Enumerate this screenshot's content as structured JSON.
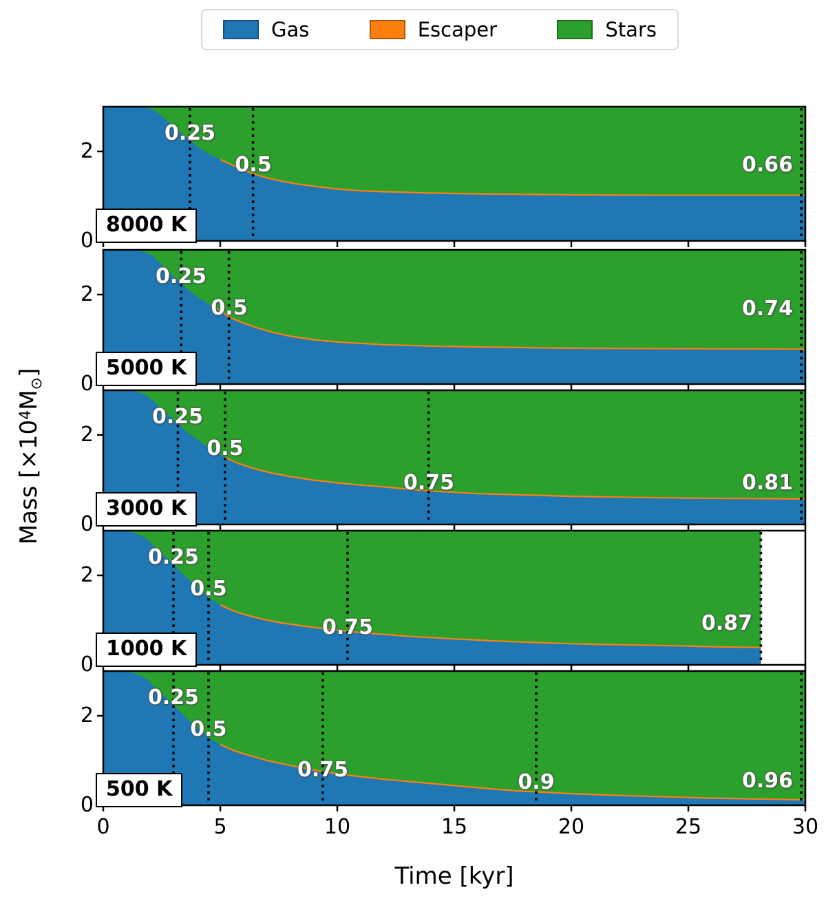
{
  "legend": {
    "items": [
      {
        "label": "Gas",
        "color": "#1f77b4"
      },
      {
        "label": "Escaper",
        "color": "#ff7f0e"
      },
      {
        "label": "Stars",
        "color": "#2ca02c"
      }
    ]
  },
  "axes": {
    "xlabel": "Time [kyr]",
    "ylabel_parts": {
      "prefix": "Mass [×10",
      "superscript": "4",
      "unit": "M",
      "subscript": "⊙",
      "suffix": "]"
    },
    "x_tick_labels": [
      "0",
      "5",
      "10",
      "15",
      "20",
      "25",
      "30"
    ],
    "y_tick_labels": [
      "0",
      "2"
    ]
  },
  "chart_data": {
    "type": "area",
    "xlabel": "Time [kyr]",
    "ylabel": "Mass [×10⁴ M⊙]",
    "xlim": [
      0,
      30
    ],
    "ylim": [
      0,
      3.0
    ],
    "x_ticks": [
      0,
      5,
      10,
      15,
      20,
      25,
      30
    ],
    "y_ticks": [
      0,
      2
    ],
    "legend_position": "top center, outside axes",
    "grid": false,
    "stack_order": [
      "Gas",
      "Escaper",
      "Stars"
    ],
    "total_mass_1e4Msun": 3.0,
    "panels": [
      {
        "label": "8000 K",
        "t_end": 30,
        "final_efficiency": "0.66",
        "gas_curve": [
          [
            0,
            3
          ],
          [
            1,
            3
          ],
          [
            1.6,
            2.99
          ],
          [
            2,
            2.96
          ],
          [
            2.3,
            2.88
          ],
          [
            2.6,
            2.74
          ],
          [
            3,
            2.55
          ],
          [
            3.35,
            2.4
          ],
          [
            3.7,
            2.25
          ],
          [
            4.1,
            2.08
          ],
          [
            4.5,
            1.95
          ],
          [
            5,
            1.82
          ],
          [
            5.5,
            1.7
          ],
          [
            6,
            1.58
          ],
          [
            6.4,
            1.5
          ],
          [
            7,
            1.41
          ],
          [
            7.6,
            1.34
          ],
          [
            8.2,
            1.28
          ],
          [
            9,
            1.22
          ],
          [
            10,
            1.16
          ],
          [
            11,
            1.12
          ],
          [
            12,
            1.1
          ],
          [
            14,
            1.07
          ],
          [
            16,
            1.05
          ],
          [
            18,
            1.04
          ],
          [
            20,
            1.03
          ],
          [
            24,
            1.02
          ],
          [
            27,
            1.02
          ],
          [
            30,
            1.02
          ]
        ],
        "escaper_thickness": 0.05,
        "milestones": [
          {
            "label": "0.25",
            "t": 3.7,
            "label_y": 2.4,
            "align": "center"
          },
          {
            "label": "0.5",
            "t": 6.4,
            "label_y": 1.7,
            "align": "center"
          },
          {
            "label": "0.66",
            "t": 30,
            "label_y": 1.7,
            "align": "right"
          }
        ]
      },
      {
        "label": "5000 K",
        "t_end": 30,
        "final_efficiency": "0.74",
        "gas_curve": [
          [
            0,
            3
          ],
          [
            0.9,
            3
          ],
          [
            1.5,
            2.98
          ],
          [
            1.9,
            2.93
          ],
          [
            2.2,
            2.82
          ],
          [
            2.5,
            2.66
          ],
          [
            2.9,
            2.45
          ],
          [
            3.33,
            2.25
          ],
          [
            3.7,
            2.08
          ],
          [
            4.1,
            1.92
          ],
          [
            4.6,
            1.76
          ],
          [
            5,
            1.64
          ],
          [
            5.37,
            1.5
          ],
          [
            5.9,
            1.38
          ],
          [
            6.5,
            1.27
          ],
          [
            7.2,
            1.16
          ],
          [
            8,
            1.07
          ],
          [
            9,
            0.99
          ],
          [
            10,
            0.94
          ],
          [
            11,
            0.91
          ],
          [
            12,
            0.88
          ],
          [
            14,
            0.85
          ],
          [
            16,
            0.83
          ],
          [
            18,
            0.815
          ],
          [
            20,
            0.8
          ],
          [
            25,
            0.79
          ],
          [
            30,
            0.78
          ]
        ],
        "escaper_thickness": 0.05,
        "milestones": [
          {
            "label": "0.25",
            "t": 3.33,
            "label_y": 2.4,
            "align": "center"
          },
          {
            "label": "0.5",
            "t": 5.37,
            "label_y": 1.7,
            "align": "center"
          },
          {
            "label": "0.74",
            "t": 30,
            "label_y": 1.68,
            "align": "right"
          }
        ]
      },
      {
        "label": "3000 K",
        "t_end": 30,
        "final_efficiency": "0.81",
        "gas_curve": [
          [
            0,
            3
          ],
          [
            0.8,
            3
          ],
          [
            1.4,
            2.97
          ],
          [
            1.8,
            2.9
          ],
          [
            2.1,
            2.78
          ],
          [
            2.4,
            2.63
          ],
          [
            2.8,
            2.44
          ],
          [
            3.19,
            2.25
          ],
          [
            3.6,
            2.06
          ],
          [
            4,
            1.9
          ],
          [
            4.5,
            1.72
          ],
          [
            5.2,
            1.5
          ],
          [
            5.8,
            1.36
          ],
          [
            6.5,
            1.24
          ],
          [
            7.2,
            1.15
          ],
          [
            8,
            1.07
          ],
          [
            9,
            0.99
          ],
          [
            10,
            0.93
          ],
          [
            11,
            0.88
          ],
          [
            12,
            0.84
          ],
          [
            13,
            0.79
          ],
          [
            13.9,
            0.75
          ],
          [
            15,
            0.72
          ],
          [
            16,
            0.69
          ],
          [
            18,
            0.66
          ],
          [
            20,
            0.63
          ],
          [
            22,
            0.61
          ],
          [
            25,
            0.59
          ],
          [
            27.5,
            0.58
          ],
          [
            30,
            0.57
          ]
        ],
        "escaper_thickness": 0.05,
        "milestones": [
          {
            "label": "0.25",
            "t": 3.19,
            "label_y": 2.4,
            "align": "center"
          },
          {
            "label": "0.5",
            "t": 5.2,
            "label_y": 1.7,
            "align": "center"
          },
          {
            "label": "0.75",
            "t": 13.9,
            "label_y": 0.92,
            "align": "center"
          },
          {
            "label": "0.81",
            "t": 30,
            "label_y": 0.93,
            "align": "right"
          }
        ]
      },
      {
        "label": "1000 K",
        "t_end": 28.1,
        "final_efficiency": "0.87",
        "gas_curve": [
          [
            0,
            3
          ],
          [
            0.7,
            3
          ],
          [
            1.2,
            2.97
          ],
          [
            1.6,
            2.9
          ],
          [
            1.9,
            2.8
          ],
          [
            2.2,
            2.64
          ],
          [
            2.6,
            2.44
          ],
          [
            3,
            2.25
          ],
          [
            3.4,
            2.03
          ],
          [
            3.8,
            1.83
          ],
          [
            4.1,
            1.7
          ],
          [
            4.5,
            1.5
          ],
          [
            5,
            1.34
          ],
          [
            5.5,
            1.22
          ],
          [
            6,
            1.13
          ],
          [
            6.8,
            1.02
          ],
          [
            7.6,
            0.94
          ],
          [
            8.5,
            0.87
          ],
          [
            9.4,
            0.81
          ],
          [
            10.44,
            0.75
          ],
          [
            11.5,
            0.7
          ],
          [
            13,
            0.64
          ],
          [
            15,
            0.58
          ],
          [
            17,
            0.53
          ],
          [
            19,
            0.49
          ],
          [
            21,
            0.46
          ],
          [
            23,
            0.44
          ],
          [
            25,
            0.42
          ],
          [
            26.5,
            0.4
          ],
          [
            28.1,
            0.39
          ]
        ],
        "escaper_thickness": 0.05,
        "milestones": [
          {
            "label": "0.25",
            "t": 3.0,
            "label_y": 2.4,
            "align": "center"
          },
          {
            "label": "0.5",
            "t": 4.5,
            "label_y": 1.7,
            "align": "center"
          },
          {
            "label": "0.75",
            "t": 10.44,
            "label_y": 0.83,
            "align": "center"
          },
          {
            "label": "0.87",
            "t": 28.1,
            "label_y": 0.92,
            "align": "right"
          }
        ]
      },
      {
        "label": "500 K",
        "t_end": 30,
        "final_efficiency": "0.96",
        "gas_curve": [
          [
            0,
            3
          ],
          [
            0.7,
            3
          ],
          [
            1.2,
            2.97
          ],
          [
            1.6,
            2.9
          ],
          [
            1.9,
            2.8
          ],
          [
            2.2,
            2.64
          ],
          [
            2.6,
            2.44
          ],
          [
            3,
            2.25
          ],
          [
            3.4,
            2.03
          ],
          [
            3.8,
            1.83
          ],
          [
            4.1,
            1.7
          ],
          [
            4.5,
            1.5
          ],
          [
            5,
            1.36
          ],
          [
            5.6,
            1.22
          ],
          [
            6.2,
            1.12
          ],
          [
            7,
            1
          ],
          [
            8,
            0.89
          ],
          [
            9.38,
            0.75
          ],
          [
            10.5,
            0.67
          ],
          [
            12,
            0.58
          ],
          [
            13.5,
            0.51
          ],
          [
            15,
            0.44
          ],
          [
            16.5,
            0.37
          ],
          [
            17.5,
            0.33
          ],
          [
            18.5,
            0.3
          ],
          [
            20,
            0.26
          ],
          [
            22,
            0.22
          ],
          [
            24,
            0.19
          ],
          [
            26,
            0.16
          ],
          [
            28,
            0.14
          ],
          [
            30,
            0.12
          ]
        ],
        "escaper_thickness": 0.05,
        "milestones": [
          {
            "label": "0.25",
            "t": 3.0,
            "label_y": 2.4,
            "align": "center"
          },
          {
            "label": "0.5",
            "t": 4.5,
            "label_y": 1.7,
            "align": "center"
          },
          {
            "label": "0.75",
            "t": 9.38,
            "label_y": 0.78,
            "align": "center"
          },
          {
            "label": "0.9",
            "t": 18.5,
            "label_y": 0.51,
            "align": "center"
          },
          {
            "label": "0.96",
            "t": 30,
            "label_y": 0.54,
            "align": "right"
          }
        ]
      }
    ]
  }
}
